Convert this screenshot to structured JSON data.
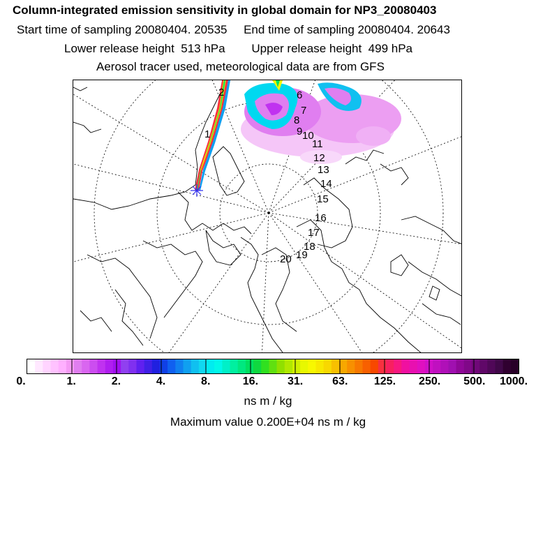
{
  "header": {
    "title": "Column-integrated emission sensitivity in global domain for NP3_20080403",
    "sampling": "Start time of sampling 20080404. 20535     End time of sampling 20080404. 20643",
    "release": "Lower release height  513 hPa        Upper release height  499 hPa",
    "tracer": "Aerosol tracer used, meteorological data are from GFS"
  },
  "map": {
    "day_markers": [
      "1",
      "2",
      "6",
      "7",
      "8",
      "9",
      "10",
      "11",
      "12",
      "13",
      "14",
      "15",
      "16",
      "17",
      "18",
      "19",
      "20"
    ]
  },
  "colorbar": {
    "colors": [
      "#ffffff",
      "#ffe8ff",
      "#ffd4ff",
      "#ffc2ff",
      "#ffb0ff",
      "#f59af5",
      "#e07ef0",
      "#d966f0",
      "#cc4df0",
      "#c032f0",
      "#b01ef0",
      "#a010f0",
      "#9040f0",
      "#8030f0",
      "#6020f0",
      "#4020e6",
      "#2020e0",
      "#1040e6",
      "#1060f0",
      "#1080f0",
      "#10a0f0",
      "#10c0f0",
      "#10d8f0",
      "#00ecf0",
      "#00f8e8",
      "#00f0c8",
      "#00f0a0",
      "#00e880",
      "#00e060",
      "#10d840",
      "#30e020",
      "#60e010",
      "#90e000",
      "#b0e800",
      "#d0f000",
      "#e8f800",
      "#f8f800",
      "#f8e800",
      "#f8d800",
      "#f8c000",
      "#f8a800",
      "#f89000",
      "#f87800",
      "#f86000",
      "#f84800",
      "#f83040",
      "#f82060",
      "#f81880",
      "#f010a0",
      "#e810b0",
      "#e010c0",
      "#d010c8",
      "#c010c0",
      "#b010b8",
      "#a010b0",
      "#900898",
      "#800888",
      "#700878",
      "#600868",
      "#500858",
      "#400848",
      "#300030",
      "#280028"
    ],
    "tick_labels": [
      "0.",
      "1.",
      "2.",
      "4.",
      "8.",
      "16.",
      "31.",
      "63.",
      "125.",
      "250.",
      "500.",
      "1000."
    ],
    "unit": "ns m / kg",
    "max_value_text": "Maximum value  0.200E+04 ns m / kg"
  }
}
